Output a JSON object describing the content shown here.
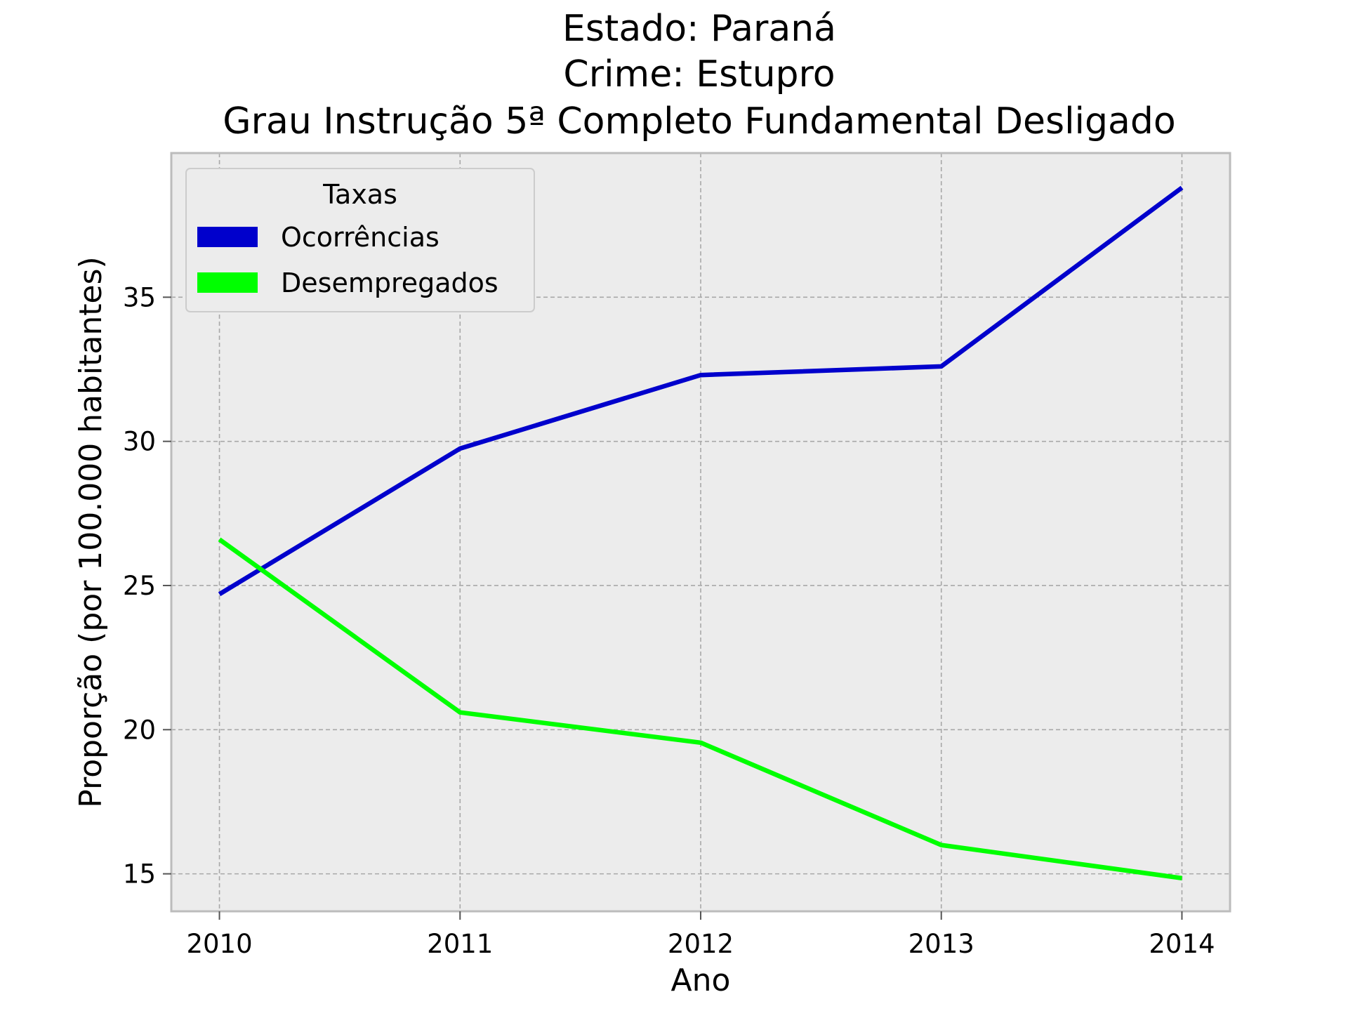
{
  "chart_data": {
    "type": "line",
    "title_lines": [
      "Estado: Paraná",
      "Crime: Estupro",
      "Grau Instrução  5ª Completo Fundamental   Desligado"
    ],
    "xlabel": "Ano",
    "ylabel": "Proporção (por 100.000 habitantes)",
    "x": [
      2010,
      2011,
      2012,
      2013,
      2014
    ],
    "x_tick_labels": [
      "2010",
      "2011",
      "2012",
      "2013",
      "2014"
    ],
    "y_ticks": [
      15,
      20,
      25,
      30,
      35
    ],
    "y_tick_labels": [
      "15",
      "20",
      "25",
      "30",
      "35"
    ],
    "xlim": [
      2009.8,
      2014.2
    ],
    "ylim": [
      13.7,
      40.0
    ],
    "grid": true,
    "legend": {
      "title": "Taxas",
      "placement": "upper-left"
    },
    "series": [
      {
        "name": "Ocorrências",
        "color": "#0000cc",
        "values": [
          24.7,
          29.75,
          32.3,
          32.6,
          38.8
        ]
      },
      {
        "name": "Desempregados",
        "color": "#00ff00",
        "values": [
          26.6,
          20.6,
          19.55,
          16.0,
          14.85
        ]
      }
    ],
    "colors": {
      "plot_background": "#ececec",
      "grid": "#a8a8a8",
      "frame": "#bcbcbc"
    }
  }
}
